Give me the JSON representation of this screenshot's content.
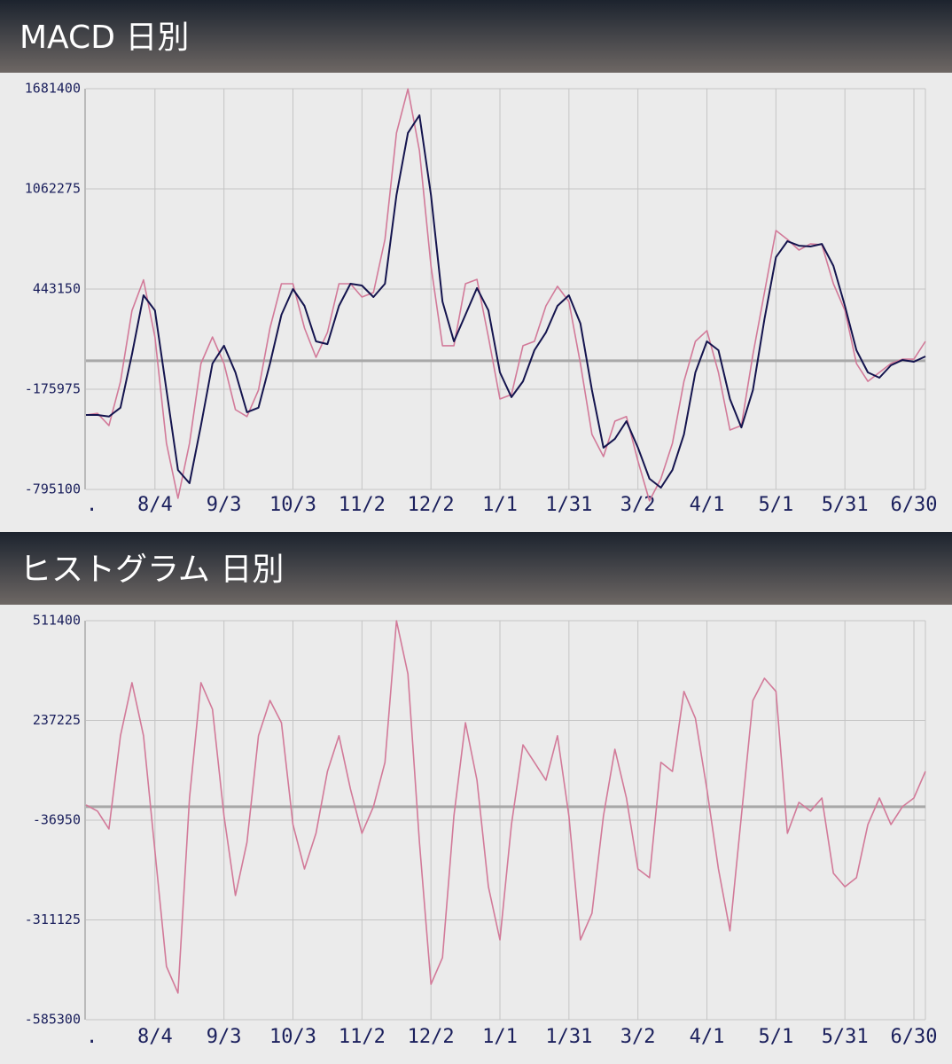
{
  "chart_data": [
    {
      "type": "line",
      "title": "MACD 日別",
      "categories": [
        ".",
        null,
        null,
        null,
        null,
        null,
        "8/4",
        null,
        null,
        null,
        null,
        null,
        "9/3",
        null,
        null,
        null,
        null,
        null,
        "10/3",
        null,
        null,
        null,
        null,
        null,
        "11/2",
        null,
        null,
        null,
        null,
        null,
        "12/2",
        null,
        null,
        null,
        null,
        null,
        "1/1",
        null,
        null,
        null,
        null,
        null,
        "1/31",
        null,
        null,
        null,
        null,
        null,
        "3/2",
        null,
        null,
        null,
        null,
        null,
        "4/1",
        null,
        null,
        null,
        null,
        null,
        "5/1",
        null,
        null,
        null,
        null,
        null,
        "5/31",
        null,
        null,
        null,
        null,
        null,
        "6/30",
        null
      ],
      "series": [
        {
          "color": "#d27a99",
          "values": [
            -335000,
            -325000,
            -400000,
            -130000,
            310000,
            500000,
            147000,
            -510000,
            -850000,
            -510000,
            -17000,
            147000,
            -17000,
            -302000,
            -345000,
            -181000,
            202000,
            476000,
            476000,
            202000,
            21000,
            175000,
            476000,
            476000,
            394000,
            421000,
            750000,
            1408000,
            1680000,
            1298000,
            586000,
            93000,
            93000,
            476000,
            503000,
            147000,
            -236000,
            -209000,
            93000,
            120000,
            339000,
            460000,
            366000,
            -17000,
            -455000,
            -592000,
            -373000,
            -345000,
            -620000,
            -866000,
            -729000,
            -510000,
            -127000,
            120000,
            186000,
            -72000,
            -428000,
            -400000,
            38000,
            421000,
            805000,
            750000,
            684000,
            722000,
            717000,
            476000,
            311000,
            -17000,
            -127000,
            -72000,
            -17000,
            10000,
            10000,
            120000
          ]
        },
        {
          "color": "#14144e",
          "values": [
            -335000,
            -335000,
            -345000,
            -290000,
            40000,
            405000,
            311000,
            -181000,
            -675000,
            -757000,
            -400000,
            -17000,
            93000,
            -72000,
            -318000,
            -290000,
            -17000,
            284000,
            443000,
            339000,
            120000,
            103000,
            339000,
            476000,
            465000,
            394000,
            476000,
            1024000,
            1408000,
            1517000,
            1024000,
            366000,
            120000,
            284000,
            449000,
            311000,
            -72000,
            -225000,
            -127000,
            65000,
            175000,
            339000,
            405000,
            230000,
            -181000,
            -537000,
            -482000,
            -373000,
            -537000,
            -729000,
            -784000,
            -675000,
            -455000,
            -72000,
            120000,
            65000,
            -236000,
            -412000,
            -181000,
            257000,
            640000,
            739000,
            711000,
            706000,
            722000,
            586000,
            339000,
            65000,
            -72000,
            -105000,
            -28000,
            5000,
            -6000,
            27000
          ]
        }
      ],
      "ylim": [
        -795100,
        1681400
      ],
      "yticks": [
        -795100,
        -175975,
        443150,
        1062275,
        1681400
      ],
      "grid": true
    },
    {
      "type": "line",
      "title": "ヒストグラム 日別",
      "categories": [
        ".",
        null,
        null,
        null,
        null,
        null,
        "8/4",
        null,
        null,
        null,
        null,
        null,
        "9/3",
        null,
        null,
        null,
        null,
        null,
        "10/3",
        null,
        null,
        null,
        null,
        null,
        "11/2",
        null,
        null,
        null,
        null,
        null,
        "12/2",
        null,
        null,
        null,
        null,
        null,
        "1/1",
        null,
        null,
        null,
        null,
        null,
        "1/31",
        null,
        null,
        null,
        null,
        null,
        "3/2",
        null,
        null,
        null,
        null,
        null,
        "4/1",
        null,
        null,
        null,
        null,
        null,
        "5/1",
        null,
        null,
        null,
        null,
        null,
        "5/31",
        null,
        null,
        null,
        null,
        null,
        "6/30",
        null
      ],
      "series": [
        {
          "color": "#d27a99",
          "values": [
            5000,
            -12000,
            -61000,
            195000,
            341000,
            195000,
            -122000,
            -439000,
            -512000,
            24000,
            341000,
            268000,
            -25000,
            -244000,
            -98000,
            195000,
            292000,
            231000,
            -49000,
            -171000,
            -73000,
            97000,
            195000,
            48000,
            -73000,
            0,
            122000,
            511000,
            365000,
            -98000,
            -488000,
            -415000,
            -25000,
            231000,
            73000,
            -220000,
            -366000,
            -49000,
            170000,
            122000,
            73000,
            195000,
            -25000,
            -366000,
            -293000,
            -25000,
            158000,
            24000,
            -171000,
            -195000,
            122000,
            97000,
            317000,
            243000,
            48000,
            -171000,
            -341000,
            -25000,
            292000,
            353000,
            317000,
            -73000,
            12000,
            -12000,
            24000,
            -183000,
            -220000,
            -195000,
            -49000,
            24000,
            -49000,
            0,
            24000,
            97000
          ]
        }
      ],
      "ylim": [
        -585300,
        511400
      ],
      "yticks": [
        -585300,
        -311125,
        -36950,
        237225,
        511400
      ],
      "grid": true
    }
  ]
}
